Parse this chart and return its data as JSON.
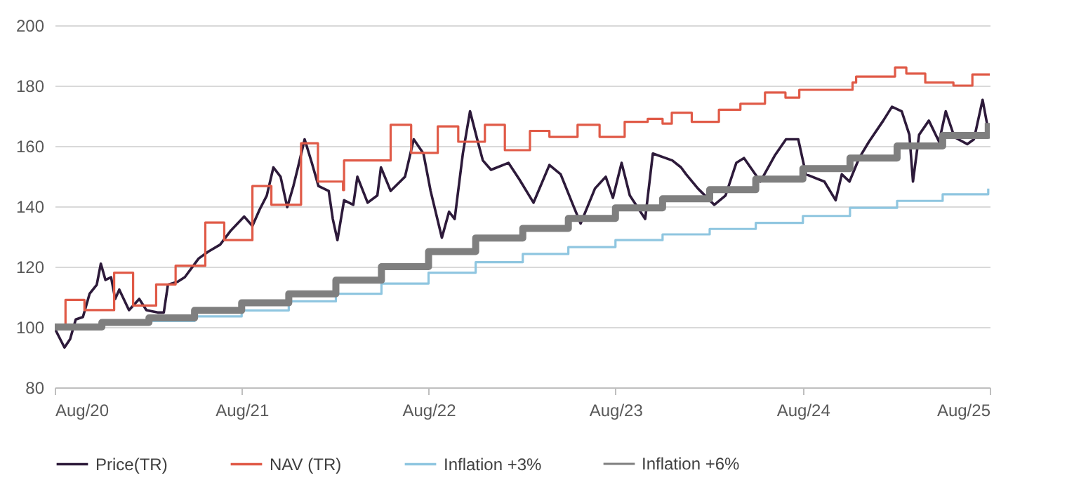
{
  "chart_data": {
    "type": "line",
    "xlim": [
      "2020-08-01",
      "2025-08-01"
    ],
    "xticks": [
      {
        "value": "2020-08-01",
        "label": "Aug/20"
      },
      {
        "value": "2021-08-01",
        "label": "Aug/21"
      },
      {
        "value": "2022-08-01",
        "label": "Aug/22"
      },
      {
        "value": "2023-08-01",
        "label": "Aug/23"
      },
      {
        "value": "2024-08-01",
        "label": "Aug/24"
      },
      {
        "value": "2025-08-01",
        "label": "Aug/25"
      }
    ],
    "ylim": [
      80,
      200
    ],
    "yticks": [
      80,
      100,
      120,
      140,
      160,
      180,
      200
    ],
    "grid": "y",
    "legend": "bottom",
    "series": [
      {
        "name": "Price(TR)",
        "type": "line",
        "color": "#2d1a3a",
        "x": [
          "2020-08-01",
          "2020-08-20",
          "2020-08-31",
          "2020-09-11",
          "2020-09-25",
          "2020-10-08",
          "2020-10-22",
          "2020-10-30",
          "2020-11-08",
          "2020-11-19",
          "2020-11-27",
          "2020-12-05",
          "2020-12-24",
          "2021-01-13",
          "2021-01-27",
          "2021-02-18",
          "2021-03-02",
          "2021-03-10",
          "2021-03-29",
          "2021-04-12",
          "2021-05-09",
          "2021-05-28",
          "2021-06-20",
          "2021-07-11",
          "2021-08-06",
          "2021-08-22",
          "2021-09-05",
          "2021-09-19",
          "2021-10-02",
          "2021-10-16",
          "2021-10-29",
          "2021-11-10",
          "2021-11-19",
          "2021-12-02",
          "2021-12-16",
          "2021-12-29",
          "2022-01-18",
          "2022-01-26",
          "2022-02-04",
          "2022-02-17",
          "2022-03-07",
          "2022-03-15",
          "2022-04-04",
          "2022-04-23",
          "2022-04-30",
          "2022-05-19",
          "2022-06-16",
          "2022-07-03",
          "2022-07-22",
          "2022-08-05",
          "2022-08-27",
          "2022-09-10",
          "2022-09-21",
          "2022-10-07",
          "2022-10-21",
          "2022-11-04",
          "2022-11-15",
          "2022-12-01",
          "2023-01-04",
          "2023-01-25",
          "2023-02-22",
          "2023-03-25",
          "2023-04-16",
          "2023-05-10",
          "2023-05-25",
          "2023-06-22",
          "2023-07-13",
          "2023-07-27",
          "2023-08-13",
          "2023-08-29",
          "2023-09-28",
          "2023-10-13",
          "2023-11-20",
          "2023-12-07",
          "2023-12-17",
          "2024-01-09",
          "2024-02-10",
          "2024-03-03",
          "2024-03-24",
          "2024-04-08",
          "2024-05-10",
          "2024-06-07",
          "2024-06-29",
          "2024-07-23",
          "2024-08-07",
          "2024-09-12",
          "2024-10-04",
          "2024-10-16",
          "2024-10-31",
          "2024-11-19",
          "2024-12-08",
          "2025-01-05",
          "2025-01-22",
          "2025-02-10",
          "2025-02-25",
          "2025-03-04",
          "2025-03-16",
          "2025-04-04",
          "2025-04-24",
          "2025-05-07",
          "2025-05-24",
          "2025-06-18",
          "2025-07-01",
          "2025-07-18",
          "2025-07-29"
        ],
        "values": [
          99.5,
          93.2,
          96,
          102.5,
          103.3,
          111,
          114,
          121,
          115.6,
          116.5,
          109.3,
          112.4,
          105.6,
          109.3,
          105.6,
          104.8,
          104.8,
          114,
          115,
          116.5,
          122.7,
          125,
          127.3,
          132,
          136.6,
          133.5,
          138.9,
          143.5,
          152.9,
          149.8,
          139.7,
          146.7,
          152.9,
          162.2,
          154.4,
          146.7,
          145.1,
          135.8,
          128.8,
          142,
          140.5,
          149.8,
          141.2,
          143.6,
          152.9,
          145.1,
          149.8,
          162.2,
          157.5,
          145.1,
          129.6,
          138.2,
          135.8,
          157.5,
          171.5,
          162.2,
          155.2,
          152.1,
          154.4,
          149,
          141.2,
          153.7,
          150.6,
          140.5,
          134.3,
          145.9,
          149.8,
          142.8,
          154.4,
          143.6,
          135.8,
          157.5,
          155.2,
          152.9,
          150.6,
          145.9,
          140.5,
          143.6,
          154.4,
          156,
          148.2,
          156.8,
          162.2,
          162.2,
          150.6,
          148.2,
          142,
          150.6,
          148.2,
          156,
          161.4,
          168.4,
          173,
          171.5,
          163.7,
          148.2,
          163.7,
          168.4,
          161.4,
          171.5,
          162.9,
          160.6,
          162.2,
          175.3,
          165.2
        ]
      },
      {
        "name": "NAV (TR)",
        "type": "step",
        "color": "#e05a47",
        "x": [
          "2020-08-01",
          "2020-08-22",
          "2020-09-28",
          "2020-11-25",
          "2021-01-01",
          "2021-02-15",
          "2021-03-25",
          "2021-05-22",
          "2021-06-28",
          "2021-08-22",
          "2021-09-28",
          "2021-11-25",
          "2021-12-28",
          "2022-02-15",
          "2022-02-17",
          "2022-05-19",
          "2022-06-28",
          "2022-08-19",
          "2022-09-28",
          "2022-11-19",
          "2022-12-28",
          "2023-02-15",
          "2023-03-25",
          "2023-05-19",
          "2023-07-01",
          "2023-08-19",
          "2023-10-03",
          "2023-11-01",
          "2023-11-19",
          "2023-12-28",
          "2024-02-19",
          "2024-04-01",
          "2024-05-19",
          "2024-06-28",
          "2024-07-25",
          "2024-11-06",
          "2024-11-13",
          "2025-01-28",
          "2025-02-19",
          "2025-03-28",
          "2025-05-22",
          "2025-06-28",
          "2025-08-01"
        ],
        "values": [
          100,
          109,
          105.6,
          118,
          107.1,
          114.1,
          120.3,
          134.6,
          128.8,
          146.7,
          140.5,
          160.9,
          148.2,
          145.4,
          155.2,
          167,
          157.7,
          166.5,
          161.4,
          167,
          158.6,
          165,
          163,
          167,
          163,
          168,
          169,
          167.4,
          171,
          168,
          172,
          174,
          177.7,
          176,
          178.6,
          181,
          183,
          186,
          184,
          181,
          180,
          183.7,
          183.7
        ]
      },
      {
        "name": "Inflation +3%",
        "type": "step",
        "color": "#8fc6e0",
        "x": [
          "2020-08-01",
          "2020-11-01",
          "2021-02-01",
          "2021-05-01",
          "2021-08-01",
          "2021-11-01",
          "2022-02-01",
          "2022-05-01",
          "2022-08-01",
          "2022-11-01",
          "2023-02-01",
          "2023-05-01",
          "2023-08-01",
          "2023-11-01",
          "2024-02-01",
          "2024-05-01",
          "2024-08-01",
          "2024-11-01",
          "2025-02-01",
          "2025-05-01",
          "2025-07-29"
        ],
        "values": [
          100,
          101,
          102,
          103.5,
          105.5,
          108.5,
          111,
          114.4,
          118,
          121.5,
          124.2,
          126.5,
          128.8,
          130.7,
          132.5,
          134.5,
          136.8,
          139.5,
          141.8,
          144,
          145.9
        ]
      },
      {
        "name": "Inflation +6%",
        "type": "step",
        "color": "#7f7f7f",
        "x": [
          "2020-08-01",
          "2020-11-01",
          "2021-02-01",
          "2021-05-01",
          "2021-08-01",
          "2021-11-01",
          "2022-02-01",
          "2022-05-01",
          "2022-08-01",
          "2022-11-01",
          "2023-02-01",
          "2023-05-01",
          "2023-08-01",
          "2023-11-01",
          "2024-02-01",
          "2024-05-01",
          "2024-08-01",
          "2024-11-01",
          "2025-02-01",
          "2025-05-01",
          "2025-07-29"
        ],
        "values": [
          100,
          101.5,
          103,
          105.5,
          108,
          111,
          115.5,
          120,
          125,
          129.5,
          132.7,
          136,
          139.5,
          142.5,
          145.5,
          149,
          152.5,
          156,
          160,
          163.5,
          167.6
        ]
      }
    ]
  }
}
